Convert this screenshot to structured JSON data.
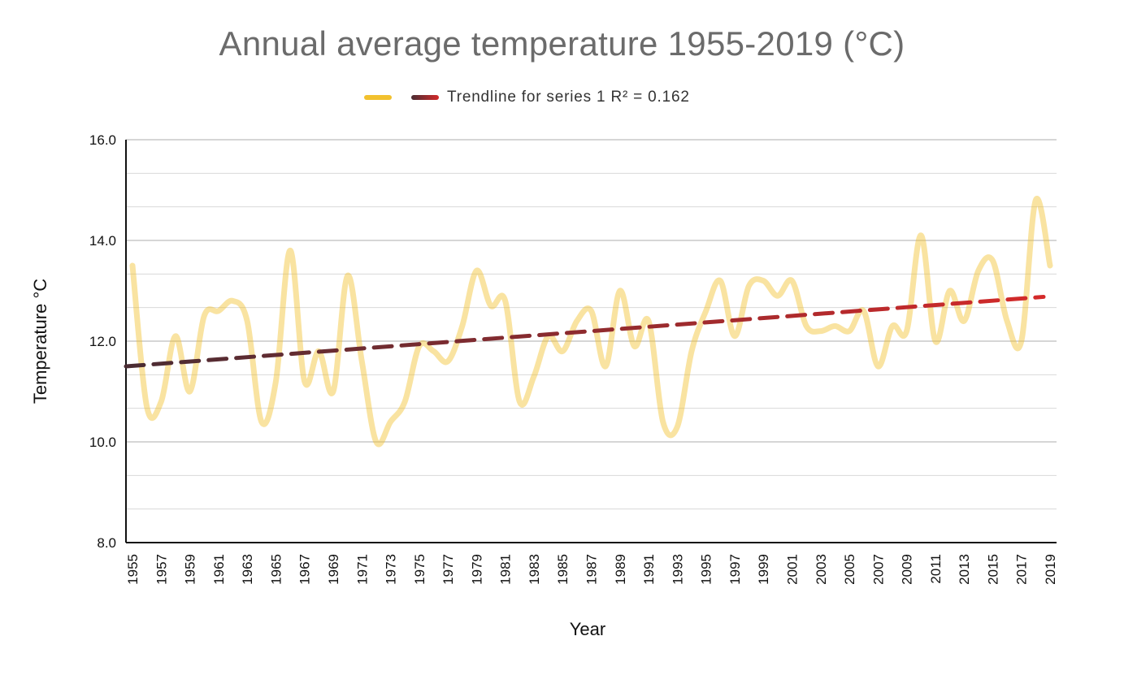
{
  "chart_data": {
    "type": "line",
    "title": "Annual average temperature 1955-2019 (°C)",
    "xlabel": "Year",
    "ylabel": "Temperature °C",
    "ylim": [
      8.0,
      16.0
    ],
    "y_ticks": [
      "8.0",
      "10.0",
      "12.0",
      "14.0",
      "16.0"
    ],
    "grid": "horizontal",
    "legend_position": "top",
    "x_tick_labels": [
      "1955",
      "1957",
      "1959",
      "1961",
      "1963",
      "1965",
      "1967",
      "1969",
      "1971",
      "1973",
      "1975",
      "1977",
      "1979",
      "1981",
      "1983",
      "1985",
      "1987",
      "1989",
      "1991",
      "1993",
      "1995",
      "1997",
      "1999",
      "2001",
      "2003",
      "2005",
      "2007",
      "2009",
      "2011",
      "2013",
      "2015",
      "2017",
      "2019"
    ],
    "x": [
      1955,
      1956,
      1957,
      1958,
      1959,
      1960,
      1961,
      1962,
      1963,
      1964,
      1965,
      1966,
      1967,
      1968,
      1969,
      1970,
      1971,
      1972,
      1973,
      1974,
      1975,
      1976,
      1977,
      1978,
      1979,
      1980,
      1981,
      1982,
      1983,
      1984,
      1985,
      1986,
      1987,
      1988,
      1989,
      1990,
      1991,
      1992,
      1993,
      1994,
      1995,
      1996,
      1997,
      1998,
      1999,
      2000,
      2001,
      2002,
      2003,
      2004,
      2005,
      2006,
      2007,
      2008,
      2009,
      2010,
      2011,
      2012,
      2013,
      2014,
      2015,
      2016,
      2017,
      2018,
      2019
    ],
    "series": [
      {
        "name": "",
        "color": "#f2c12e",
        "values": [
          13.5,
          10.7,
          10.8,
          12.1,
          11.0,
          12.5,
          12.6,
          12.8,
          12.4,
          10.4,
          11.2,
          13.8,
          11.2,
          11.8,
          11.0,
          13.3,
          11.6,
          10.0,
          10.4,
          10.8,
          11.9,
          11.8,
          11.6,
          12.3,
          13.4,
          12.7,
          12.8,
          10.8,
          11.3,
          12.1,
          11.8,
          12.4,
          12.6,
          11.5,
          13.0,
          11.9,
          12.4,
          10.4,
          10.3,
          11.8,
          12.6,
          13.2,
          12.1,
          13.1,
          13.2,
          12.9,
          13.2,
          12.3,
          12.2,
          12.3,
          12.2,
          12.6,
          11.5,
          12.3,
          12.2,
          14.1,
          12.0,
          13.0,
          12.4,
          13.4,
          13.6,
          12.4,
          12.0,
          14.8,
          13.5
        ]
      }
    ],
    "trendline": {
      "label": "Trendline for series 1 R² = 0.162",
      "start": [
        1955,
        11.5
      ],
      "end": [
        2019,
        12.88
      ],
      "color_start": "#4a2c33",
      "color_end": "#d42a2a"
    }
  }
}
